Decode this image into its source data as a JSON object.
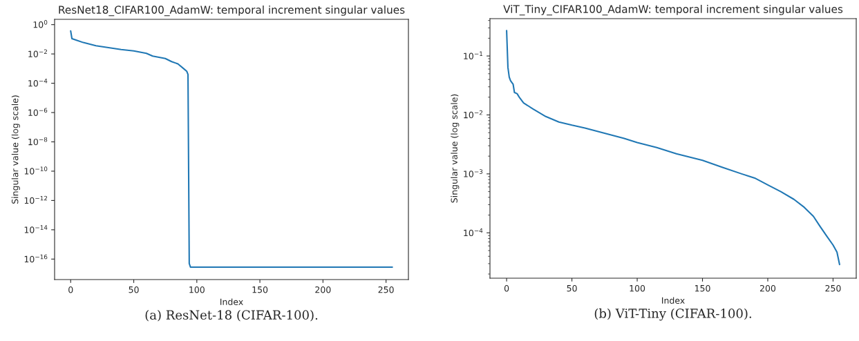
{
  "chart_data": [
    {
      "type": "line",
      "title": "ResNet18_CIFAR100_AdamW: temporal increment singular values",
      "xlabel": "Index",
      "ylabel": "Singular value (log scale)",
      "log": "y",
      "xlim": [
        -12.75,
        267.75
      ],
      "xticks": [
        0,
        50,
        100,
        150,
        200,
        250
      ],
      "ylim": [
        4e-18,
        2.3
      ],
      "yticks": [
        {
          "value": 1,
          "label": "10$^{0}$"
        },
        {
          "value": 0.01,
          "label": "10$^{−2}$"
        },
        {
          "value": 0.0001,
          "label": "10$^{−4}$"
        },
        {
          "value": 1e-06,
          "label": "10$^{−6}$"
        },
        {
          "value": 1e-08,
          "label": "10$^{−8}$"
        },
        {
          "value": 1e-10,
          "label": "10$^{−10}$"
        },
        {
          "value": 1e-12,
          "label": "10$^{−12}$"
        },
        {
          "value": 1e-14,
          "label": "10$^{−14}$"
        },
        {
          "value": 1e-16,
          "label": "10$^{−16}$"
        }
      ],
      "series": [
        {
          "color": "#1f77b4",
          "x": [
            0,
            1,
            5,
            10,
            20,
            30,
            40,
            50,
            60,
            65,
            75,
            80,
            85,
            90,
            92,
            93,
            94,
            95,
            255
          ],
          "values": [
            0.37,
            0.11,
            0.085,
            0.06,
            0.036,
            0.027,
            0.02,
            0.016,
            0.011,
            0.0071,
            0.0049,
            0.003,
            0.0021,
            0.00092,
            0.00066,
            0.0004,
            5e-17,
            2.8e-17,
            2.8e-17
          ]
        }
      ],
      "annotations": [
        "(a) ResNet-18 (CIFAR-100)."
      ]
    },
    {
      "type": "line",
      "title": "ViT_Tiny_CIFAR100_AdamW: temporal increment singular values",
      "xlabel": "Index",
      "ylabel": "Singular value (log scale)",
      "log": "y",
      "xlim": [
        -12.75,
        267.75
      ],
      "xticks": [
        0,
        50,
        100,
        150,
        200,
        250
      ],
      "ylim": [
        1.7e-05,
        0.43
      ],
      "yticks": [
        {
          "value": 0.1,
          "label": "10$^{−1}$"
        },
        {
          "value": 0.01,
          "label": "10$^{−2}$"
        },
        {
          "value": 0.001,
          "label": "10$^{−3}$"
        },
        {
          "value": 0.0001,
          "label": "10$^{−4}$"
        },
        {
          "value": 2e-05,
          "label": null
        },
        {
          "value": 3e-05,
          "label": null
        },
        {
          "value": 4e-05,
          "label": null
        },
        {
          "value": 5e-05,
          "label": null
        },
        {
          "value": 6e-05,
          "label": null
        },
        {
          "value": 7e-05,
          "label": null
        },
        {
          "value": 8e-05,
          "label": null
        },
        {
          "value": 9e-05,
          "label": null
        },
        {
          "value": 0.0002,
          "label": null
        },
        {
          "value": 0.0003,
          "label": null
        },
        {
          "value": 0.0004,
          "label": null
        },
        {
          "value": 0.0005,
          "label": null
        },
        {
          "value": 0.0006,
          "label": null
        },
        {
          "value": 0.0007,
          "label": null
        },
        {
          "value": 0.0008,
          "label": null
        },
        {
          "value": 0.0009,
          "label": null
        },
        {
          "value": 0.002,
          "label": null
        },
        {
          "value": 0.003,
          "label": null
        },
        {
          "value": 0.004,
          "label": null
        },
        {
          "value": 0.005,
          "label": null
        },
        {
          "value": 0.006,
          "label": null
        },
        {
          "value": 0.007,
          "label": null
        },
        {
          "value": 0.008,
          "label": null
        },
        {
          "value": 0.009,
          "label": null
        },
        {
          "value": 0.02,
          "label": null
        },
        {
          "value": 0.03,
          "label": null
        },
        {
          "value": 0.04,
          "label": null
        },
        {
          "value": 0.05,
          "label": null
        },
        {
          "value": 0.06,
          "label": null
        },
        {
          "value": 0.07,
          "label": null
        },
        {
          "value": 0.08,
          "label": null
        },
        {
          "value": 0.09,
          "label": null
        },
        {
          "value": 0.2,
          "label": null
        },
        {
          "value": 0.3,
          "label": null
        },
        {
          "value": 0.4,
          "label": null
        }
      ],
      "series": [
        {
          "color": "#1f77b4",
          "x": [
            0,
            1,
            2,
            3,
            5,
            6,
            8,
            10,
            13,
            20,
            30,
            40,
            50,
            60,
            75,
            90,
            100,
            115,
            130,
            150,
            165,
            180,
            190,
            200,
            210,
            220,
            228,
            235,
            240,
            245,
            250,
            253,
            255
          ],
          "values": [
            0.27,
            0.064,
            0.044,
            0.038,
            0.033,
            0.024,
            0.023,
            0.0195,
            0.016,
            0.0127,
            0.0094,
            0.0076,
            0.0067,
            0.006,
            0.0049,
            0.004,
            0.0034,
            0.0028,
            0.0022,
            0.0017,
            0.0013,
            0.001,
            0.00085,
            0.00065,
            0.0005,
            0.00037,
            0.00027,
            0.00019,
            0.000129,
            8.9e-05,
            6.2e-05,
            4.7e-05,
            2.9e-05
          ]
        }
      ],
      "annotations": [
        "(b) ViT-Tiny (CIFAR-100)."
      ]
    }
  ]
}
